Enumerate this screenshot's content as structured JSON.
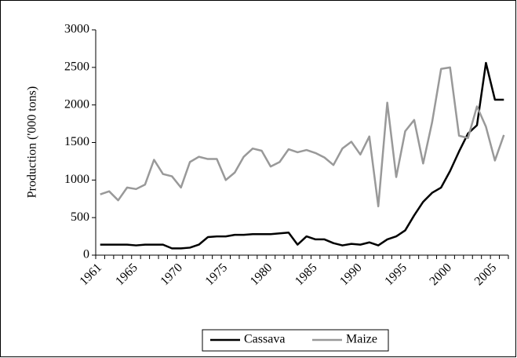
{
  "chart_data": {
    "type": "line",
    "y_label": "Production ('000 tons)",
    "categories": [
      "1961",
      null,
      null,
      null,
      "1965",
      null,
      null,
      null,
      null,
      "1970",
      null,
      null,
      null,
      null,
      "1975",
      null,
      null,
      null,
      null,
      "1980",
      null,
      null,
      null,
      null,
      "1985",
      null,
      null,
      null,
      null,
      "1990",
      null,
      null,
      null,
      null,
      "1995",
      null,
      null,
      null,
      null,
      "2000",
      null,
      null,
      null,
      null,
      "2005",
      null
    ],
    "series": [
      {
        "name": "Cassava",
        "color": "#000000",
        "values": [
          140,
          140,
          140,
          140,
          130,
          140,
          140,
          140,
          90,
          90,
          100,
          140,
          240,
          250,
          250,
          270,
          270,
          280,
          280,
          280,
          290,
          300,
          140,
          250,
          210,
          210,
          160,
          130,
          150,
          140,
          170,
          130,
          210,
          250,
          330,
          530,
          710,
          830,
          900,
          1120,
          1380,
          1620,
          1730,
          2560,
          2070,
          2070
        ]
      },
      {
        "name": "Maize",
        "color": "#999999",
        "values": [
          810,
          850,
          730,
          900,
          880,
          940,
          1270,
          1080,
          1050,
          900,
          1240,
          1310,
          1280,
          1280,
          1000,
          1100,
          1310,
          1420,
          1390,
          1180,
          1240,
          1410,
          1370,
          1400,
          1360,
          1300,
          1200,
          1420,
          1510,
          1340,
          1580,
          650,
          2030,
          1040,
          1650,
          1800,
          1220,
          1770,
          2480,
          2500,
          1590,
          1560,
          1980,
          1710,
          1260,
          1600
        ]
      }
    ],
    "ylim": [
      0,
      3000
    ],
    "yticks": [
      0,
      500,
      1000,
      1500,
      2000,
      2500,
      3000
    ],
    "grid": false,
    "legend": "bottom"
  }
}
